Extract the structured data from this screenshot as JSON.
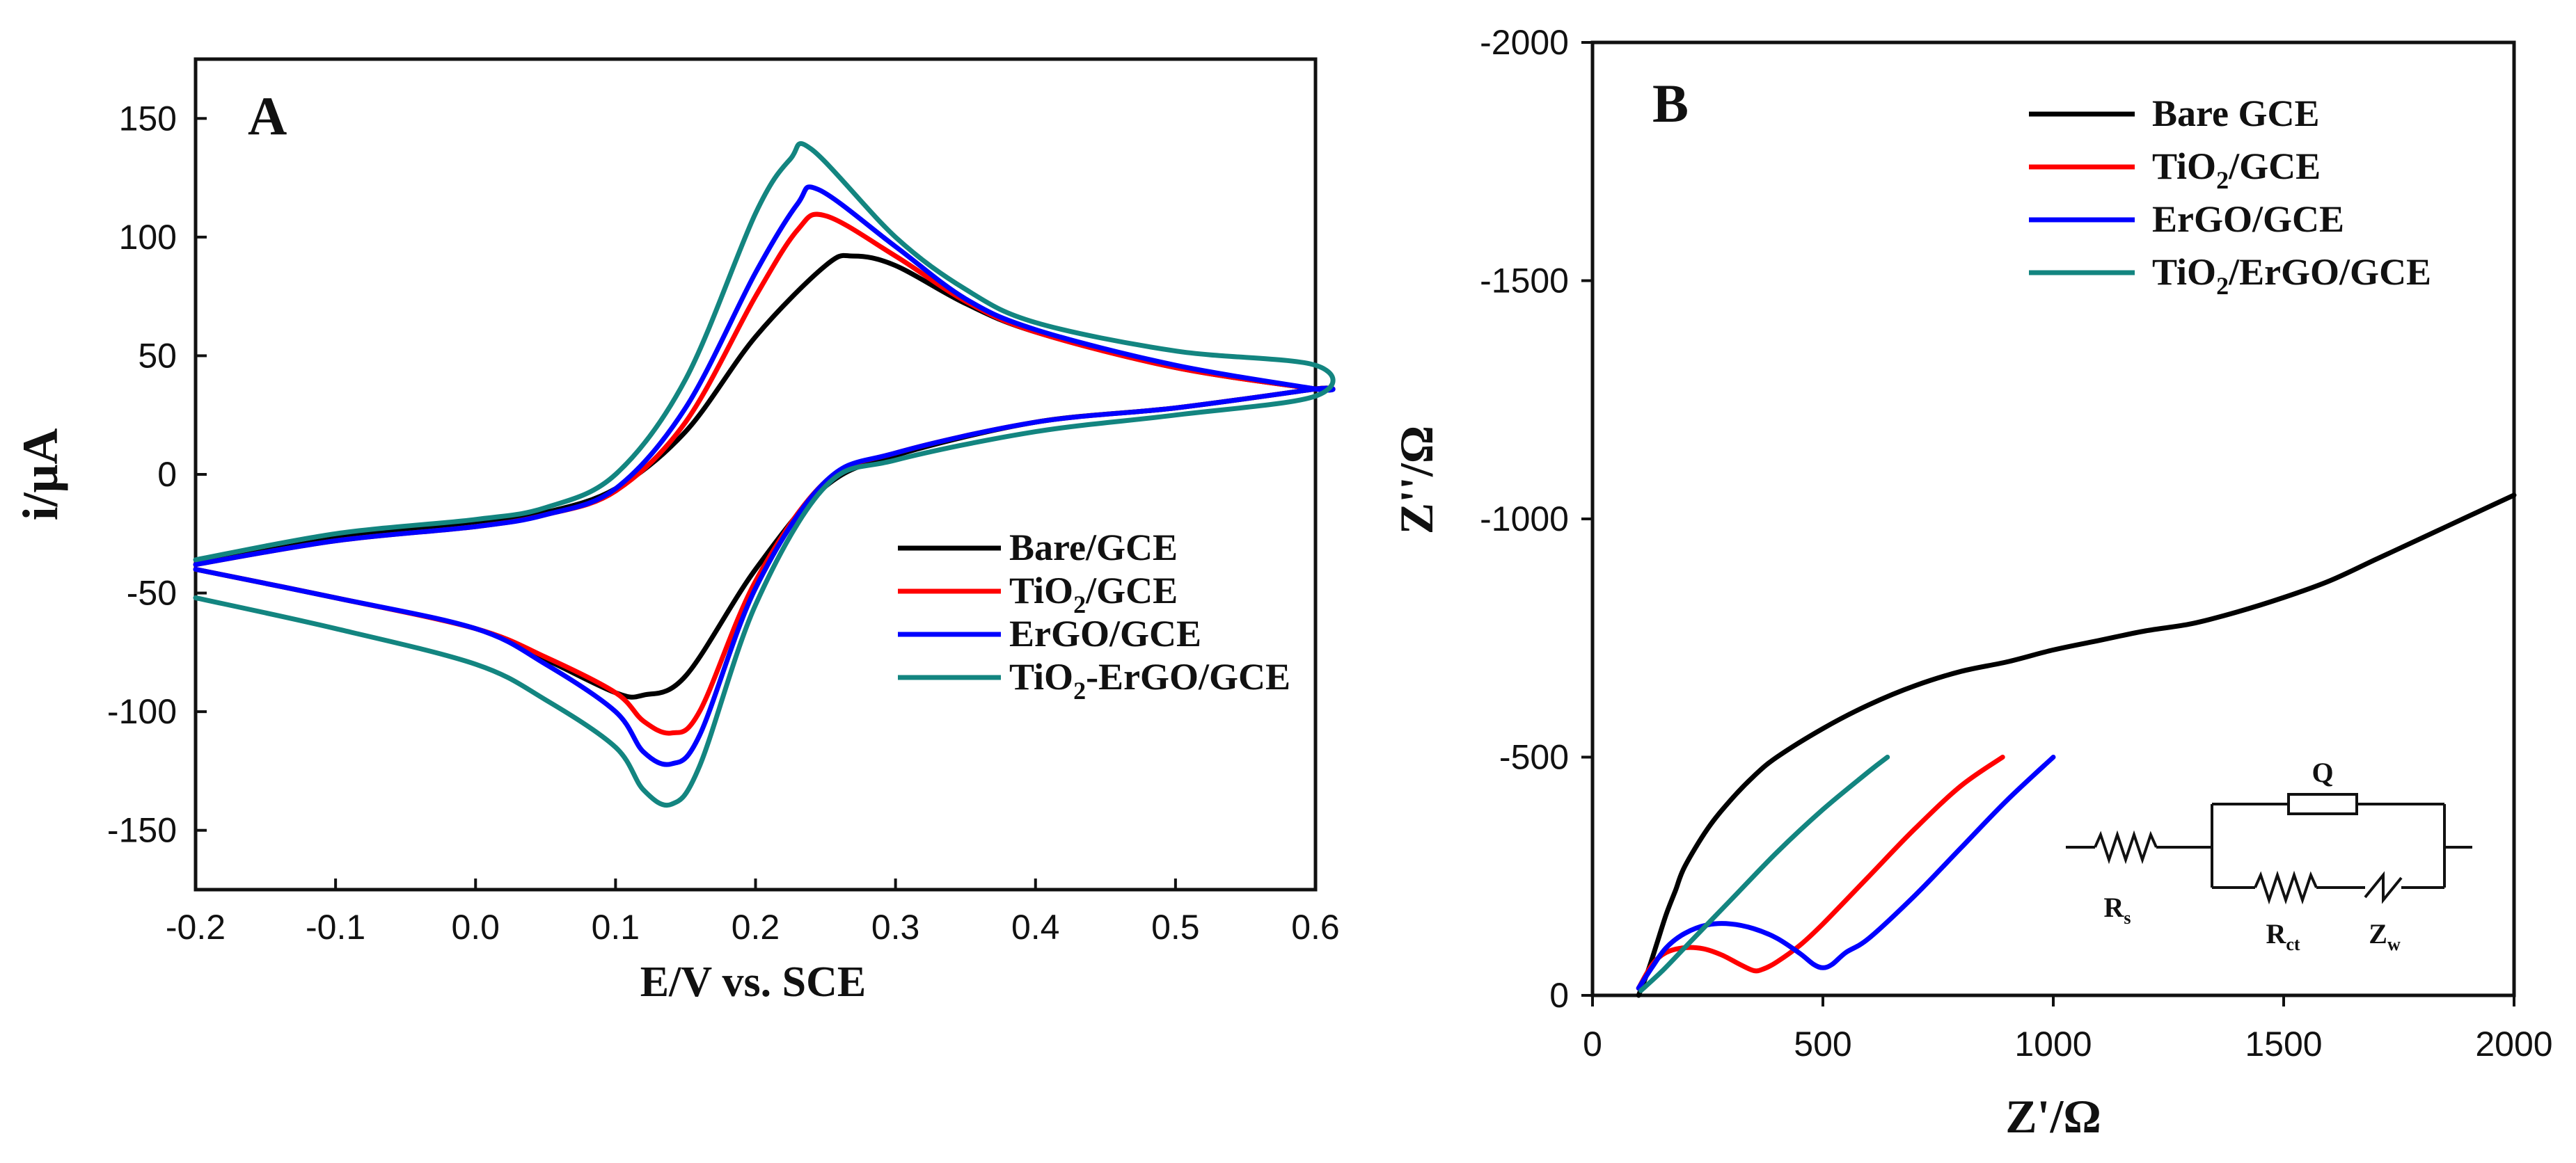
{
  "chart_data": [
    {
      "panel": "A",
      "type": "line",
      "xlabel": "E/V vs. SCE",
      "ylabel": "i/μA",
      "xlim": [
        -0.2,
        0.6
      ],
      "ylim": [
        -175,
        175
      ],
      "xticks": [
        -0.2,
        -0.1,
        0.0,
        0.1,
        0.2,
        0.3,
        0.4,
        0.5,
        0.6
      ],
      "xtick_labels": [
        "-0.2",
        "-0.1",
        "0.0",
        "0.1",
        "0.2",
        "0.3",
        "0.4",
        "0.5",
        "0.6"
      ],
      "yticks": [
        -150,
        -100,
        -50,
        0,
        50,
        100,
        150
      ],
      "ytick_labels": [
        "-150",
        "-100",
        "-50",
        "0",
        "50",
        "100",
        "150"
      ],
      "legend_position": "lower-right",
      "series": [
        {
          "name": "Bare/GCE",
          "label_main": "Bare/GCE",
          "label_sub": "",
          "label_rest": "",
          "color": "#000000",
          "x": [
            -0.2,
            -0.1,
            0,
            0.05,
            0.1,
            0.15,
            0.2,
            0.25,
            0.27,
            0.3,
            0.35,
            0.4,
            0.5,
            0.6,
            0.6,
            0.5,
            0.4,
            0.3,
            0.25,
            0.2,
            0.15,
            0.12,
            0.1,
            0.05,
            0,
            -0.1,
            -0.2
          ],
          "y": [
            -38,
            -27,
            -20,
            -16,
            -6,
            18,
            58,
            88,
            92,
            88,
            72,
            60,
            45,
            36,
            36,
            28,
            22,
            8,
            -5,
            -40,
            -85,
            -93,
            -92,
            -78,
            -65,
            -52,
            -40
          ]
        },
        {
          "name": "TiO2/GCE",
          "label_main": "TiO",
          "label_sub": "2",
          "label_rest": "/GCE",
          "color": "#ff0000",
          "x": [
            -0.2,
            -0.1,
            0,
            0.05,
            0.1,
            0.15,
            0.2,
            0.23,
            0.25,
            0.3,
            0.35,
            0.4,
            0.5,
            0.6,
            0.6,
            0.5,
            0.4,
            0.3,
            0.25,
            0.2,
            0.16,
            0.14,
            0.12,
            0.1,
            0.05,
            0,
            -0.1,
            -0.2
          ],
          "y": [
            -38,
            -28,
            -22,
            -17,
            -7,
            22,
            75,
            103,
            109,
            92,
            73,
            60,
            45,
            36,
            36,
            28,
            22,
            9,
            -3,
            -45,
            -100,
            -109,
            -104,
            -92,
            -77,
            -65,
            -52,
            -40
          ]
        },
        {
          "name": "ErGO/GCE",
          "label_main": "ErGO/GCE",
          "label_sub": "",
          "label_rest": "",
          "color": "#0000ff",
          "x": [
            -0.2,
            -0.1,
            0,
            0.05,
            0.1,
            0.15,
            0.2,
            0.23,
            0.245,
            0.3,
            0.35,
            0.4,
            0.5,
            0.6,
            0.6,
            0.5,
            0.4,
            0.3,
            0.25,
            0.2,
            0.16,
            0.14,
            0.12,
            0.1,
            0.05,
            0,
            -0.1,
            -0.2
          ],
          "y": [
            -38,
            -28,
            -22,
            -17,
            -6,
            28,
            85,
            114,
            120,
            96,
            74,
            61,
            46,
            36,
            36,
            28,
            22,
            9,
            -3,
            -48,
            -110,
            -122,
            -117,
            -100,
            -80,
            -65,
            -52,
            -40
          ]
        },
        {
          "name": "TiO2-ErGO/GCE",
          "label_main": "TiO",
          "label_sub": "2",
          "label_rest": "-ErGO/GCE",
          "color": "#138580",
          "x": [
            -0.2,
            -0.1,
            0,
            0.05,
            0.1,
            0.15,
            0.2,
            0.225,
            0.24,
            0.3,
            0.35,
            0.4,
            0.5,
            0.6,
            0.6,
            0.5,
            0.4,
            0.3,
            0.25,
            0.2,
            0.16,
            0.14,
            0.12,
            0.1,
            0.05,
            0,
            -0.1,
            -0.2
          ],
          "y": [
            -36,
            -25,
            -19,
            -14,
            0,
            40,
            110,
            133,
            137,
            100,
            78,
            64,
            52,
            46,
            33,
            25,
            18,
            6,
            -5,
            -55,
            -123,
            -139,
            -133,
            -115,
            -95,
            -80,
            -65,
            -52
          ]
        }
      ]
    },
    {
      "panel": "B",
      "type": "line",
      "xlabel": "Z'/Ω",
      "ylabel": "Z''/Ω",
      "xlim": [
        0,
        2000
      ],
      "ylim": [
        0,
        -2000
      ],
      "xticks": [
        0,
        500,
        1000,
        1500,
        2000
      ],
      "xtick_labels": [
        "0",
        "500",
        "1000",
        "1500",
        "2000"
      ],
      "yticks": [
        0,
        -500,
        -1000,
        -1500,
        -2000
      ],
      "ytick_labels": [
        "0",
        "-500",
        "-1000",
        "-1500",
        "-2000"
      ],
      "legend_position": "top-right",
      "series": [
        {
          "name": "Bare GCE",
          "label_main": "Bare GCE",
          "label_sub": "",
          "label_rest": "",
          "color": "#000000",
          "x": [
            100,
            120,
            140,
            160,
            180,
            200,
            250,
            300,
            350,
            400,
            500,
            600,
            700,
            800,
            900,
            1000,
            1100,
            1200,
            1300,
            1400,
            1500,
            1600,
            1700,
            1800,
            1900,
            2000
          ],
          "y": [
            0,
            -50,
            -110,
            -170,
            -220,
            -270,
            -350,
            -410,
            -460,
            -500,
            -560,
            -610,
            -650,
            -680,
            -700,
            -725,
            -745,
            -765,
            -780,
            -805,
            -835,
            -870,
            -915,
            -960,
            -1005,
            -1050
          ]
        },
        {
          "name": "TiO2/GCE",
          "label_main": "TiO",
          "label_sub": "2",
          "label_rest": "/GCE",
          "color": "#ff0000",
          "x": [
            100,
            130,
            160,
            200,
            240,
            280,
            320,
            350,
            370,
            400,
            450,
            500,
            600,
            700,
            800,
            890
          ],
          "y": [
            -15,
            -65,
            -90,
            -100,
            -98,
            -85,
            -65,
            -52,
            -55,
            -70,
            -105,
            -150,
            -250,
            -350,
            -440,
            -500
          ]
        },
        {
          "name": "ErGO/GCE",
          "label_main": "ErGO/GCE",
          "label_sub": "",
          "label_rest": "",
          "color": "#0000ff",
          "x": [
            100,
            130,
            160,
            200,
            250,
            300,
            350,
            400,
            450,
            480,
            500,
            520,
            550,
            600,
            700,
            800,
            900,
            1000
          ],
          "y": [
            -15,
            -60,
            -100,
            -130,
            -148,
            -150,
            -140,
            -120,
            -88,
            -65,
            -58,
            -65,
            -90,
            -120,
            -210,
            -310,
            -410,
            -500
          ]
        },
        {
          "name": "TiO2/ErGO/GCE",
          "label_main": "TiO",
          "label_sub": "2",
          "label_rest": "/ErGO/GCE",
          "color": "#138580",
          "x": [
            105,
            150,
            200,
            300,
            400,
            500,
            600,
            640
          ],
          "y": [
            -10,
            -50,
            -100,
            -200,
            -300,
            -390,
            -470,
            -500
          ]
        }
      ]
    }
  ],
  "panels": {
    "a": {
      "letter": "A"
    },
    "b": {
      "letter": "B"
    }
  },
  "circuit": {
    "labels": {
      "q": "Q",
      "rs_main": "R",
      "rs_sub": "s",
      "rct_main": "R",
      "rct_sub": "ct",
      "zw_main": "Z",
      "zw_sub": "w"
    }
  }
}
